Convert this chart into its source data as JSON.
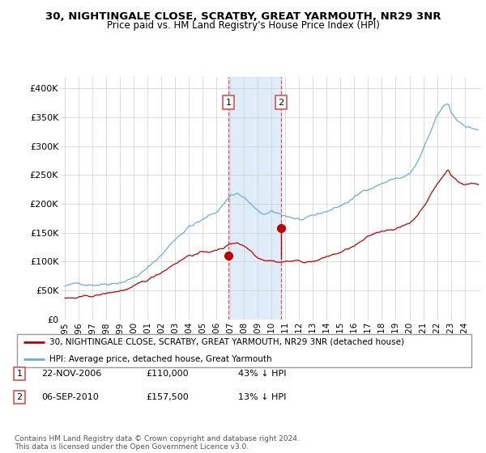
{
  "title": "30, NIGHTINGALE CLOSE, SCRATBY, GREAT YARMOUTH, NR29 3NR",
  "subtitle": "Price paid vs. HM Land Registry's House Price Index (HPI)",
  "legend_line1": "30, NIGHTINGALE CLOSE, SCRATBY, GREAT YARMOUTH, NR29 3NR (detached house)",
  "legend_line2": "HPI: Average price, detached house, Great Yarmouth",
  "annotation1": {
    "label": "1",
    "date": "22-NOV-2006",
    "price": "£110,000",
    "pct": "43% ↓ HPI"
  },
  "annotation2": {
    "label": "2",
    "date": "06-SEP-2010",
    "price": "£157,500",
    "pct": "13% ↓ HPI"
  },
  "footer": "Contains HM Land Registry data © Crown copyright and database right 2024.\nThis data is licensed under the Open Government Licence v3.0.",
  "hpi_color": "#6aaed6",
  "price_color": "#c00000",
  "vline_color": "#e05050",
  "vband_color": "#daeaf7",
  "ylim": [
    0,
    420000
  ],
  "yticks": [
    0,
    50000,
    100000,
    150000,
    200000,
    250000,
    300000,
    350000,
    400000
  ],
  "ytick_labels": [
    "£0",
    "£50K",
    "£100K",
    "£150K",
    "£200K",
    "£250K",
    "£300K",
    "£350K",
    "£400K"
  ],
  "sale1_x": 2006.88,
  "sale1_y": 110000,
  "sale2_x": 2010.67,
  "sale2_y": 157500,
  "vband_x1": 2006.88,
  "vband_x2": 2010.67,
  "xmin": 1994.7,
  "xmax": 2025.2,
  "xticks": [
    1995,
    1996,
    1997,
    1998,
    1999,
    2000,
    2001,
    2002,
    2003,
    2004,
    2005,
    2006,
    2007,
    2008,
    2009,
    2010,
    2011,
    2012,
    2013,
    2014,
    2015,
    2016,
    2017,
    2018,
    2019,
    2020,
    2021,
    2022,
    2023,
    2024
  ]
}
